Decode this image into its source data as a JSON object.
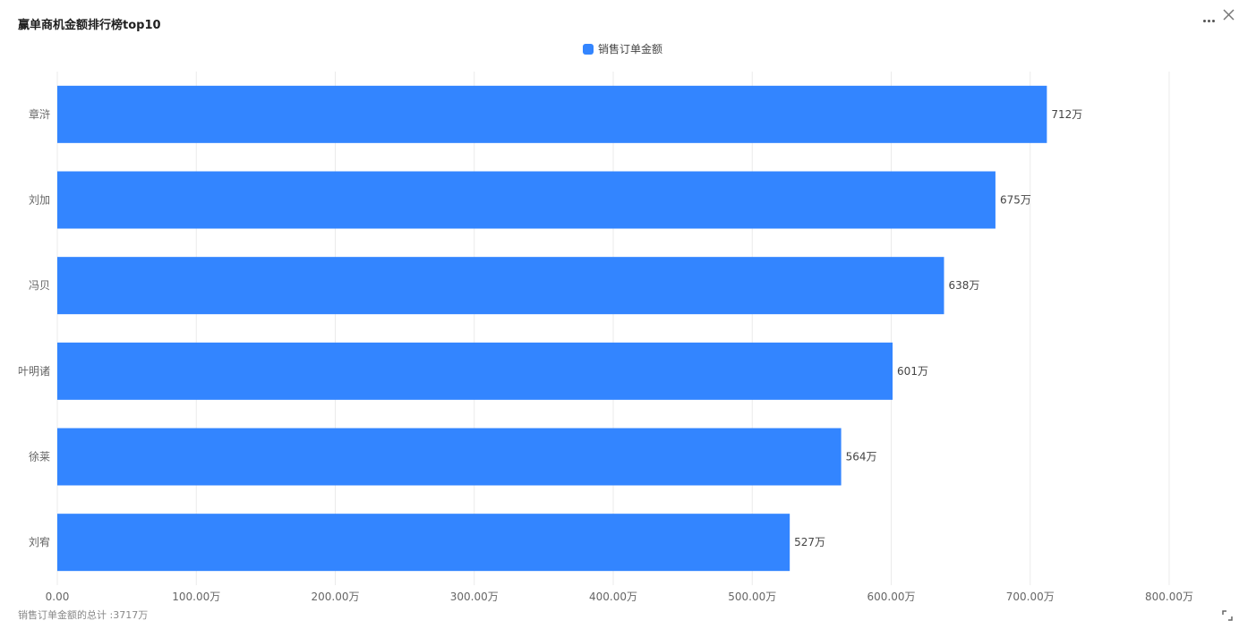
{
  "widget": {
    "title": "赢单商机金额排行榜top10",
    "more_icon": "more-dots-icon",
    "close_icon": "close-icon",
    "expand_icon": "expand-icon",
    "summary_text": "销售订单金额的总计 :3717万"
  },
  "colors": {
    "bar": "#3385ff",
    "grid": "#ebebeb",
    "axis_text": "#666666",
    "value_text": "#444444"
  },
  "chart_data": {
    "type": "bar",
    "orientation": "horizontal",
    "categories": [
      "章浒",
      "刘加",
      "冯贝",
      "叶明诸",
      "徐莱",
      "刘宥"
    ],
    "series": [
      {
        "name": "销售订单金额",
        "values": [
          712,
          675,
          638,
          601,
          564,
          527
        ],
        "value_labels": [
          "712万",
          "675万",
          "638万",
          "601万",
          "564万",
          "527万"
        ]
      }
    ],
    "x_ticks": [
      0,
      100,
      200,
      300,
      400,
      500,
      600,
      700,
      800
    ],
    "x_tick_labels": [
      "0.00",
      "100.00万",
      "200.00万",
      "300.00万",
      "400.00万",
      "500.00万",
      "600.00万",
      "700.00万",
      "800.00万"
    ],
    "xlim": [
      0,
      800
    ],
    "unit": "万",
    "grid": true,
    "legend_position": "top-center"
  }
}
